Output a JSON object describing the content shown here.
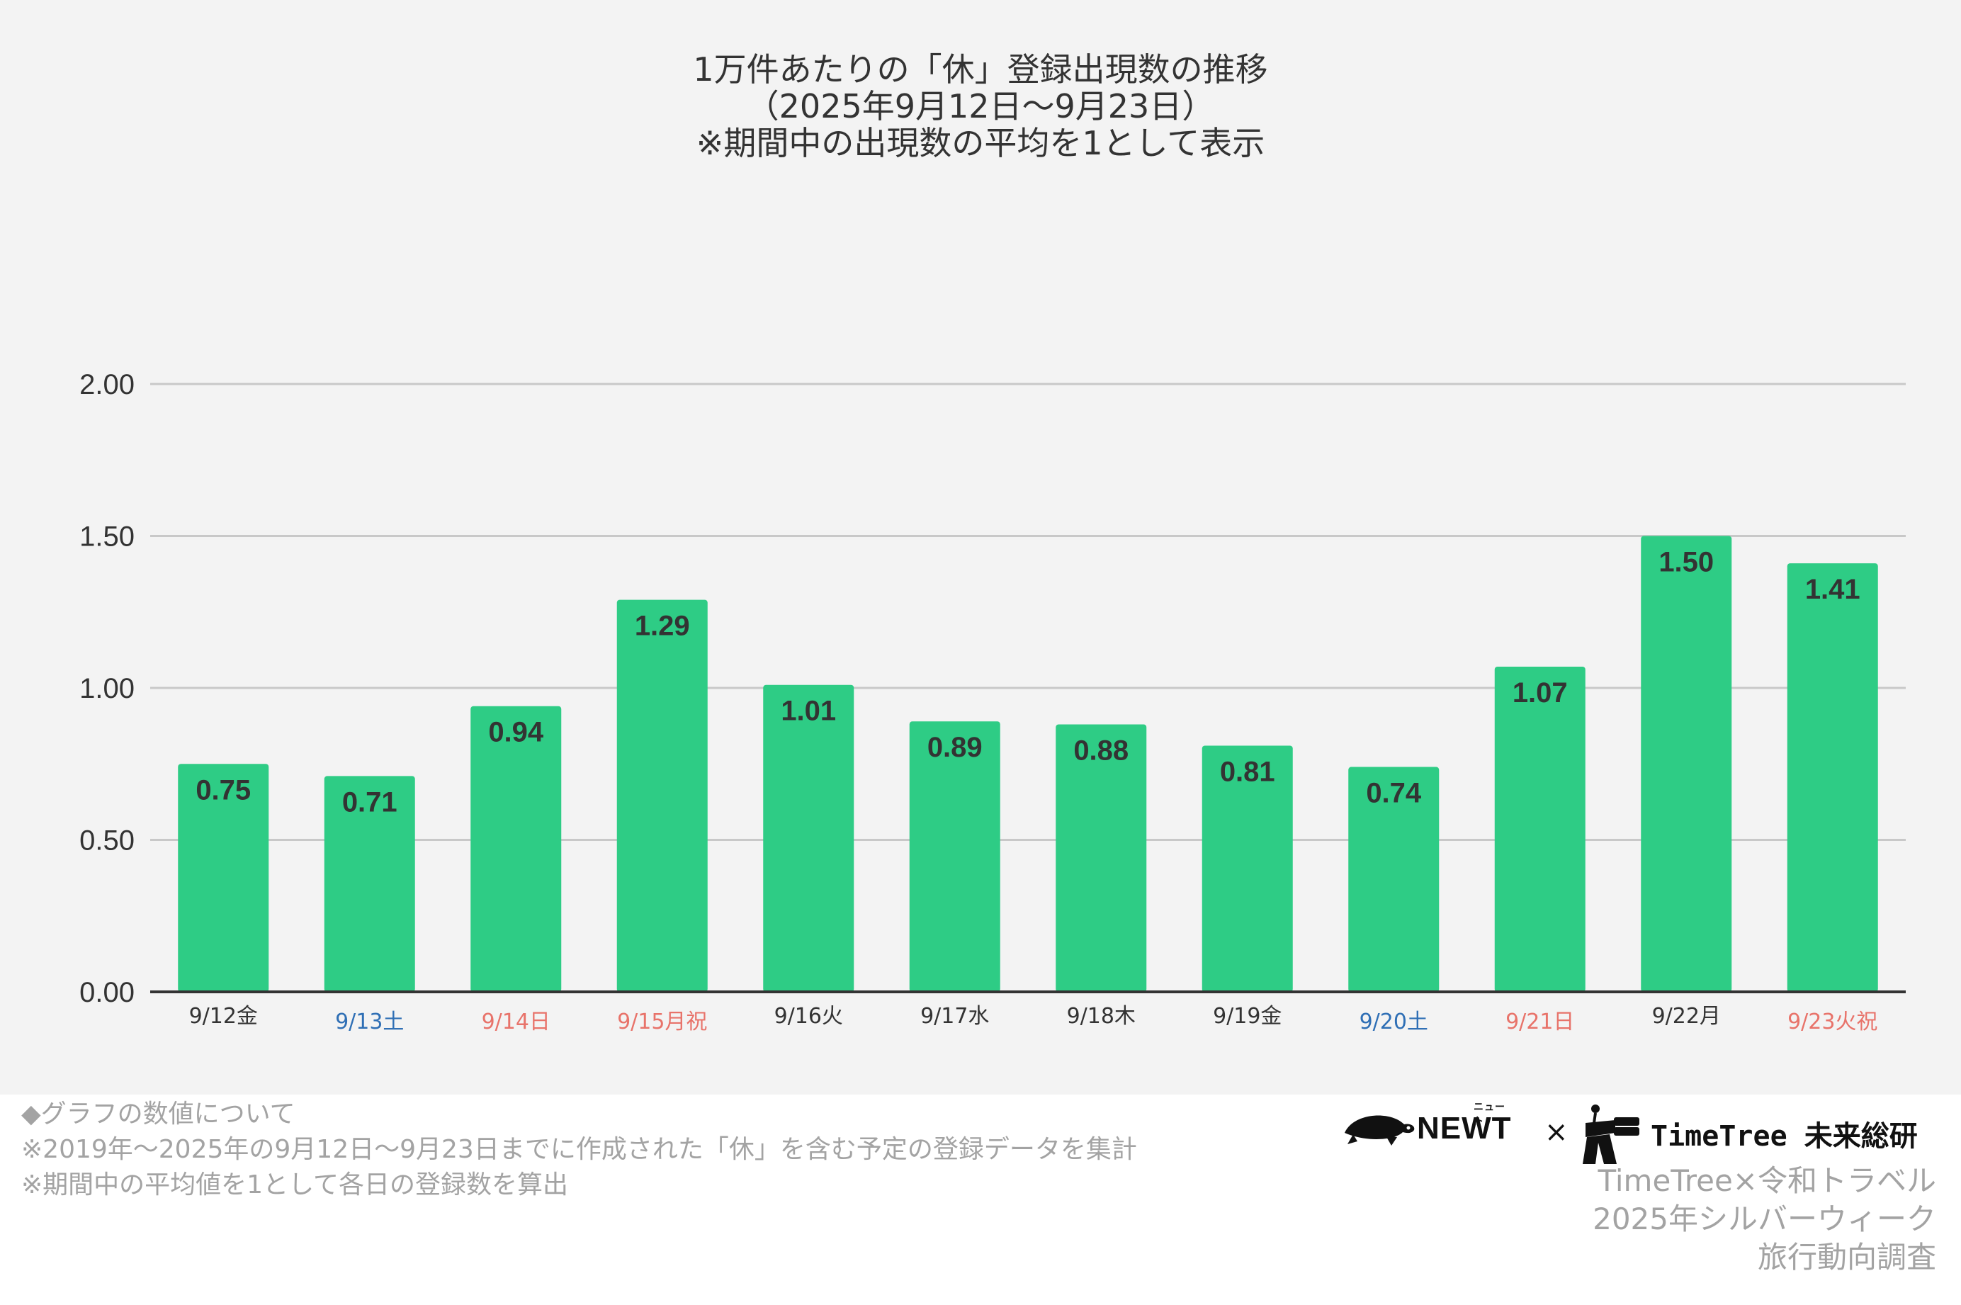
{
  "chart_data": {
    "type": "bar",
    "title": [
      "1万件あたりの「休」登録出現数の推移",
      "（2025年9月12日〜9月23日）",
      "※期間中の出現数の平均を1として表示"
    ],
    "categories": [
      "9/12金",
      "9/13土",
      "9/14日",
      "9/15月祝",
      "9/16火",
      "9/17水",
      "9/18木",
      "9/19金",
      "9/20土",
      "9/21日",
      "9/22月",
      "9/23火祝"
    ],
    "values": [
      0.75,
      0.71,
      0.94,
      1.29,
      1.01,
      0.89,
      0.88,
      0.81,
      0.74,
      1.07,
      1.5,
      1.41
    ],
    "data_labels": [
      "0.75",
      "0.71",
      "0.94",
      "1.29",
      "1.01",
      "0.89",
      "0.88",
      "0.81",
      "0.74",
      "1.07",
      "1.50",
      "1.41"
    ],
    "category_day_type": [
      "weekday",
      "saturday",
      "holiday",
      "holiday",
      "weekday",
      "weekday",
      "weekday",
      "weekday",
      "saturday",
      "holiday",
      "weekday",
      "holiday"
    ],
    "yticks": [
      "0.00",
      "0.50",
      "1.00",
      "1.50",
      "2.00"
    ],
    "ylim": [
      0,
      2
    ],
    "xlabel": "",
    "ylabel": "",
    "grid": true,
    "legend": "none",
    "colors": {
      "bar": "#2ecc85",
      "weekday_label": "#333333",
      "saturday_label": "#2f6fb5",
      "holiday_label": "#e8736a",
      "gridline": "#c8c8c8",
      "axis": "#333333"
    }
  },
  "footnotes": {
    "heading": "◆グラフの数値について",
    "lines": [
      "※2019年〜2025年の9月12日〜9月23日までに作成された「休」を含む予定の登録データを集計",
      "※期間中の平均値を1として各日の登録数を算出"
    ]
  },
  "logos": {
    "newt": "NEWT",
    "newt_ruby": "ニュート",
    "times": "×",
    "timetree": "TimeTree 未来総研",
    "newt_icon": "turtle-icon",
    "timetree_icon": "person-with-binoculars-icon"
  },
  "survey": {
    "lines": [
      "TimeTree×令和トラベル",
      "2025年シルバーウィーク",
      "旅行動向調査"
    ]
  }
}
